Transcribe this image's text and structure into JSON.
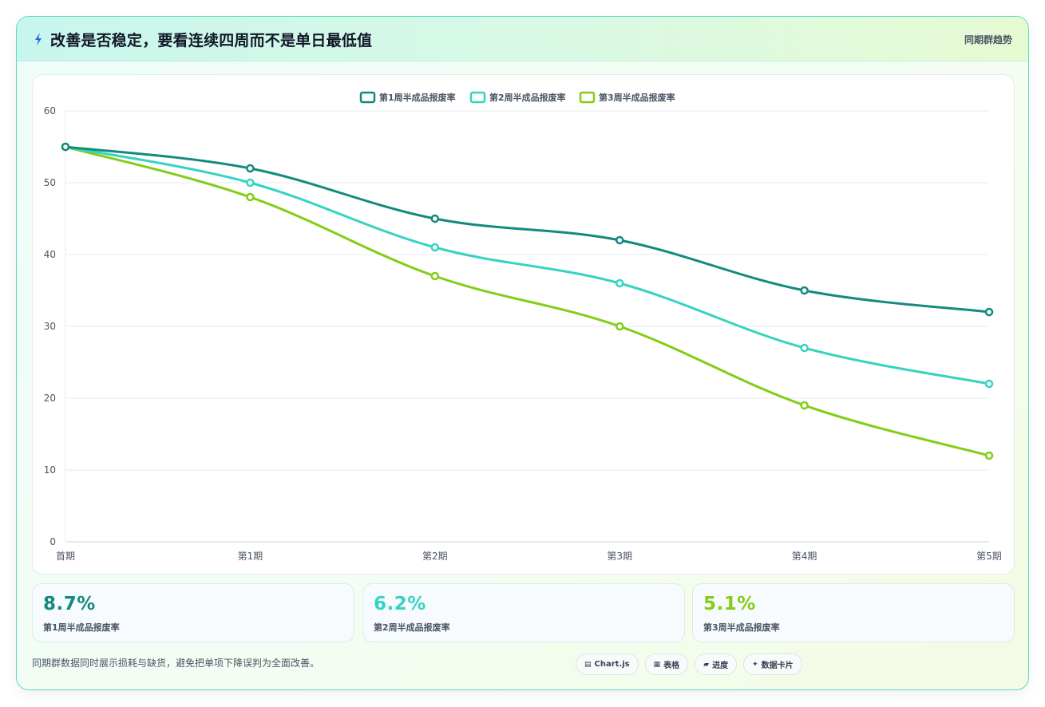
{
  "header": {
    "title": "改善是否稳定，要看连续四周而不是单日最低值",
    "tag": "同期群趋势",
    "icon": "lightning-icon"
  },
  "chart_data": {
    "type": "line",
    "categories": [
      "首期",
      "第1期",
      "第2期",
      "第3期",
      "第4期",
      "第5期"
    ],
    "series": [
      {
        "name": "第1周半成品报废率",
        "color": "#138a7e",
        "values": [
          55,
          52,
          45,
          42,
          35,
          32
        ]
      },
      {
        "name": "第2周半成品报废率",
        "color": "#36d3c2",
        "values": [
          55,
          50,
          41,
          36,
          27,
          22
        ]
      },
      {
        "name": "第3周半成品报废率",
        "color": "#84cc16",
        "values": [
          55,
          48,
          37,
          30,
          19,
          12
        ]
      }
    ],
    "ylim": [
      0,
      60
    ],
    "yticks": [
      0,
      10,
      20,
      30,
      40,
      50,
      60
    ],
    "grid": true,
    "legend_position": "top-center"
  },
  "stats": [
    {
      "value": "8.7%",
      "label": "第1周半成品报废率",
      "color": "#138a7e"
    },
    {
      "value": "6.2%",
      "label": "第2周半成品报废率",
      "color": "#36d3c2"
    },
    {
      "value": "5.1%",
      "label": "第3周半成品报废率",
      "color": "#84cc16"
    }
  ],
  "footer": {
    "note": "同期群数据同时展示损耗与缺货，避免把单项下降误判为全面改善。",
    "chips": [
      {
        "icon": "chart-icon",
        "glyph": "▤",
        "label": "Chart.js"
      },
      {
        "icon": "table-icon",
        "glyph": "▦",
        "label": "表格"
      },
      {
        "icon": "progress-icon",
        "glyph": "▰",
        "label": "进度"
      },
      {
        "icon": "sparkle-icon",
        "glyph": "✦",
        "label": "数据卡片"
      }
    ]
  }
}
